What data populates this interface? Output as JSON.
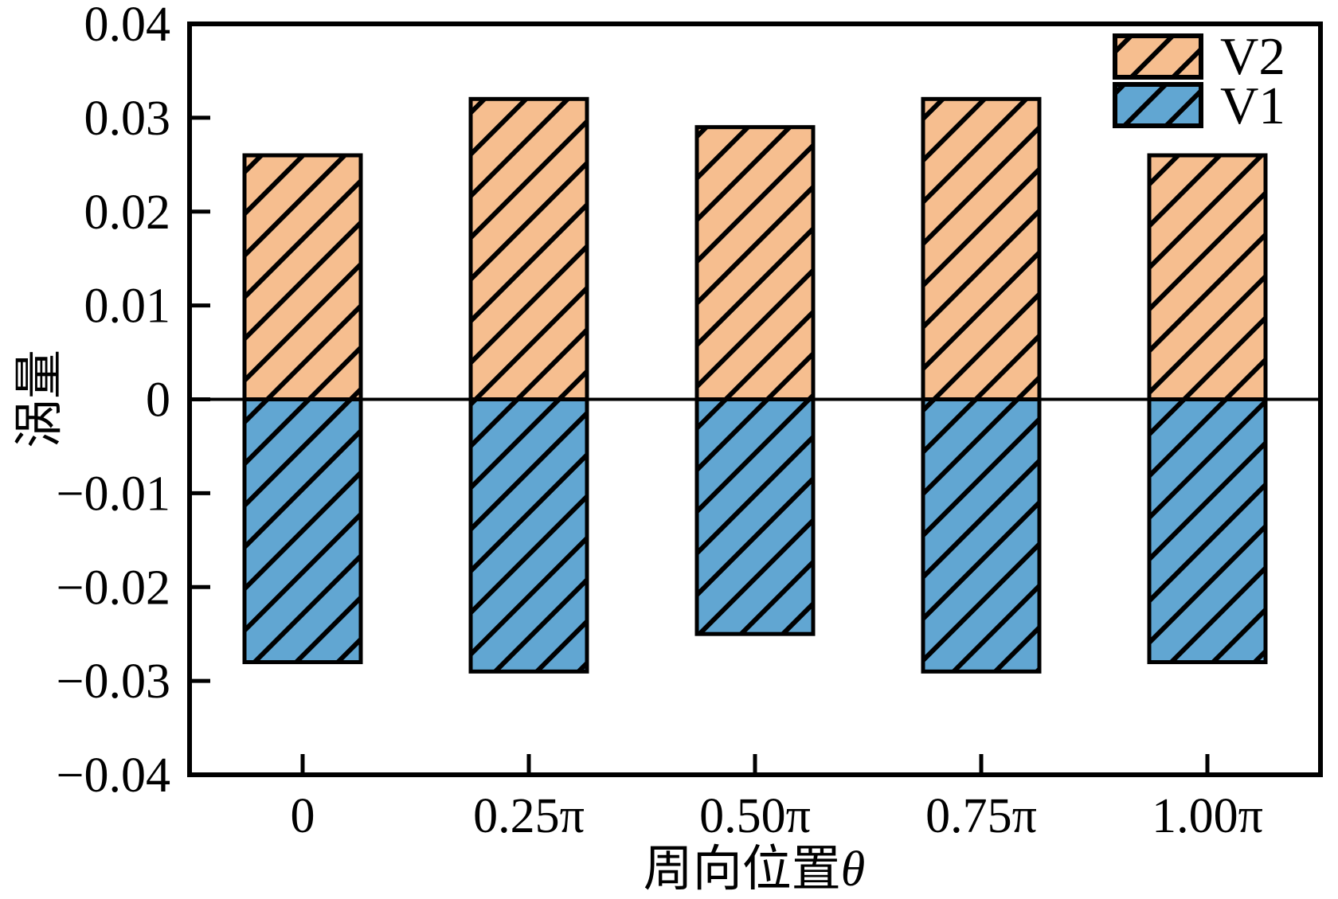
{
  "chart_data": {
    "type": "bar",
    "title": "",
    "xlabel": "周向位置θ",
    "ylabel": "涡量",
    "categories": [
      "0",
      "0.25π",
      "0.50π",
      "0.75π",
      "1.00π"
    ],
    "series": [
      {
        "name": "V2",
        "color": "#F6BE8F",
        "values": [
          0.026,
          0.032,
          0.029,
          0.032,
          0.026
        ]
      },
      {
        "name": "V1",
        "color": "#61A6D2",
        "values": [
          -0.028,
          -0.029,
          -0.025,
          -0.029,
          -0.028
        ]
      }
    ],
    "ylim": [
      -0.04,
      0.04
    ],
    "yticks": [
      {
        "v": 0.04,
        "label": "0.04"
      },
      {
        "v": 0.03,
        "label": "0.03"
      },
      {
        "v": 0.02,
        "label": "0.02"
      },
      {
        "v": 0.01,
        "label": "0.01"
      },
      {
        "v": 0.0,
        "label": "0"
      },
      {
        "v": -0.01,
        "label": "−0.01"
      },
      {
        "v": -0.02,
        "label": "−0.02"
      },
      {
        "v": -0.03,
        "label": "−0.03"
      },
      {
        "v": -0.04,
        "label": "−0.04"
      }
    ],
    "grid": false,
    "legend_position": "top-right-inside",
    "hatch": "diagonal-forward",
    "bar_edge_color": "#000000",
    "zero_line": true
  }
}
